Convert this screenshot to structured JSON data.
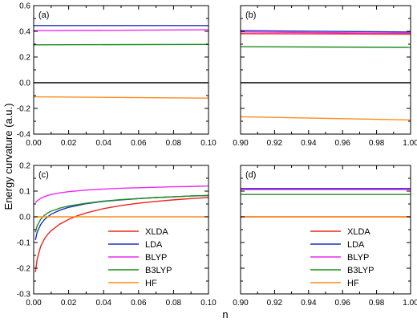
{
  "figure": {
    "ylabel": "Energy curvature (a.u.)",
    "xlabel": "n"
  },
  "colors": {
    "XLDA": "#e8261d",
    "LDA": "#1f2fbf",
    "BLYP": "#ef29ef",
    "B3LYP": "#1f8f1f",
    "HF": "#ff8c1a",
    "zero": "#000000"
  },
  "chart_data": [
    {
      "panel": "(a)",
      "type": "line",
      "xlim": [
        0.0,
        0.1
      ],
      "ylim": [
        -0.4,
        0.6
      ],
      "xticks": [
        "0.00",
        "0.02",
        "0.04",
        "0.06",
        "0.08",
        "0.10"
      ],
      "yticks": [
        "-0.4",
        "-0.2",
        "0.0",
        "0.2",
        "0.4",
        "0.6"
      ],
      "series": [
        {
          "color_key": "LDA",
          "x": [
            0.0,
            0.1
          ],
          "y": [
            0.445,
            0.445
          ]
        },
        {
          "color_key": "BLYP",
          "x": [
            0.0,
            0.1
          ],
          "y": [
            0.405,
            0.412
          ]
        },
        {
          "color_key": "B3LYP",
          "x": [
            0.0,
            0.1
          ],
          "y": [
            0.295,
            0.298
          ]
        },
        {
          "color_key": "zero",
          "x": [
            0.0,
            0.1
          ],
          "y": [
            0.0,
            0.0
          ]
        },
        {
          "color_key": "HF",
          "x": [
            0.0,
            0.1
          ],
          "y": [
            -0.11,
            -0.12
          ]
        }
      ]
    },
    {
      "panel": "(b)",
      "type": "line",
      "xlim": [
        0.9,
        1.0
      ],
      "ylim": [
        -0.4,
        0.6
      ],
      "xticks": [
        "0.90",
        "0.92",
        "0.94",
        "0.96",
        "0.98",
        "1.00"
      ],
      "yticks": [],
      "series": [
        {
          "color_key": "LDA",
          "x": [
            0.9,
            1.0
          ],
          "y": [
            0.405,
            0.395
          ]
        },
        {
          "color_key": "BLYP",
          "x": [
            0.9,
            1.0
          ],
          "y": [
            0.395,
            0.385
          ]
        },
        {
          "color_key": "XLDA",
          "x": [
            0.9,
            1.0
          ],
          "y": [
            0.382,
            0.378
          ]
        },
        {
          "color_key": "B3LYP",
          "x": [
            0.9,
            1.0
          ],
          "y": [
            0.28,
            0.275
          ]
        },
        {
          "color_key": "zero",
          "x": [
            0.9,
            1.0
          ],
          "y": [
            0.0,
            0.0
          ]
        },
        {
          "color_key": "HF",
          "x": [
            0.9,
            1.0
          ],
          "y": [
            -0.265,
            -0.29
          ]
        }
      ]
    },
    {
      "panel": "(c)",
      "type": "line",
      "xlim": [
        0.0,
        0.1
      ],
      "ylim": [
        -0.3,
        0.2
      ],
      "xticks": [
        "0.00",
        "0.02",
        "0.04",
        "0.06",
        "0.08",
        "0.10"
      ],
      "yticks": [
        "-0.3",
        "-0.2",
        "-0.1",
        "0.0",
        "0.1",
        "0.2"
      ],
      "legend_position": "bottom-right",
      "series": [
        {
          "name": "XLDA",
          "color_key": "XLDA",
          "x": [
            0.001,
            0.002,
            0.004,
            0.006,
            0.008,
            0.01,
            0.015,
            0.02,
            0.025,
            0.03,
            0.04,
            0.05,
            0.06,
            0.07,
            0.08,
            0.09,
            0.1
          ],
          "y": [
            -0.215,
            -0.165,
            -0.115,
            -0.088,
            -0.068,
            -0.054,
            -0.028,
            -0.01,
            0.004,
            0.015,
            0.032,
            0.044,
            0.053,
            0.06,
            0.066,
            0.071,
            0.075
          ]
        },
        {
          "name": "LDA",
          "color_key": "LDA",
          "x": [
            0.001,
            0.002,
            0.004,
            0.006,
            0.008,
            0.01,
            0.015,
            0.02,
            0.03,
            0.04,
            0.05,
            0.06,
            0.07,
            0.08,
            0.09,
            0.1
          ],
          "y": [
            -0.09,
            -0.06,
            -0.03,
            -0.012,
            0.0,
            0.01,
            0.026,
            0.037,
            0.051,
            0.06,
            0.066,
            0.071,
            0.075,
            0.078,
            0.081,
            0.083
          ]
        },
        {
          "name": "BLYP",
          "color_key": "BLYP",
          "x": [
            0.001,
            0.002,
            0.004,
            0.006,
            0.008,
            0.01,
            0.015,
            0.02,
            0.03,
            0.04,
            0.05,
            0.06,
            0.07,
            0.08,
            0.09,
            0.1
          ],
          "y": [
            0.055,
            0.062,
            0.072,
            0.078,
            0.083,
            0.087,
            0.093,
            0.098,
            0.104,
            0.108,
            0.111,
            0.113,
            0.115,
            0.117,
            0.118,
            0.12
          ]
        },
        {
          "name": "B3LYP",
          "color_key": "B3LYP",
          "x": [
            0.001,
            0.002,
            0.004,
            0.006,
            0.008,
            0.01,
            0.015,
            0.02,
            0.03,
            0.04,
            0.05,
            0.06,
            0.07,
            0.08,
            0.09,
            0.1
          ],
          "y": [
            -0.06,
            -0.035,
            -0.01,
            0.005,
            0.015,
            0.022,
            0.034,
            0.042,
            0.053,
            0.061,
            0.067,
            0.071,
            0.075,
            0.078,
            0.081,
            0.083
          ]
        },
        {
          "name": "HF",
          "color_key": "HF",
          "x": [
            0.0,
            0.1
          ],
          "y": [
            0.0,
            0.0
          ]
        }
      ]
    },
    {
      "panel": "(d)",
      "type": "line",
      "xlim": [
        0.9,
        1.0
      ],
      "ylim": [
        -0.3,
        0.2
      ],
      "xticks": [
        "0.90",
        "0.92",
        "0.94",
        "0.96",
        "0.98",
        "1.00"
      ],
      "yticks": [],
      "legend_position": "bottom-right",
      "series": [
        {
          "name": "XLDA",
          "color_key": "XLDA",
          "x": [
            0.9,
            1.0
          ],
          "y": [
            0.0,
            0.0
          ]
        },
        {
          "name": "LDA",
          "color_key": "LDA",
          "x": [
            0.9,
            1.0
          ],
          "y": [
            0.11,
            0.11
          ]
        },
        {
          "name": "BLYP",
          "color_key": "BLYP",
          "x": [
            0.9,
            1.0
          ],
          "y": [
            0.106,
            0.106
          ]
        },
        {
          "name": "B3LYP",
          "color_key": "B3LYP",
          "x": [
            0.9,
            1.0
          ],
          "y": [
            0.087,
            0.087
          ]
        },
        {
          "name": "HF",
          "color_key": "HF",
          "x": [
            0.9,
            1.0
          ],
          "y": [
            0.0,
            0.0
          ]
        }
      ]
    }
  ]
}
